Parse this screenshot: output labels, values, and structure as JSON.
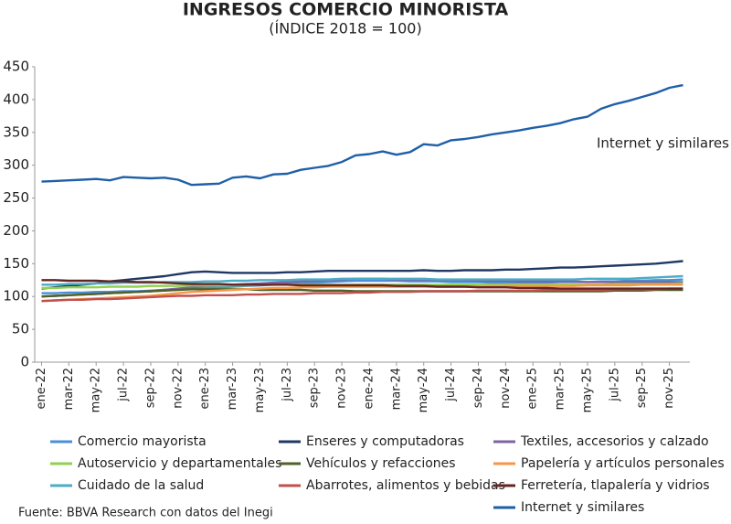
{
  "chart_data": {
    "type": "line",
    "title": "INGRESOS COMERCIO MINORISTA",
    "subtitle": "(ÍNDICE 2018 = 100)",
    "annotation": "Internet y similares",
    "source": "Fuente: BBVA Research con datos del Inegi",
    "categories": [
      "ene-22",
      null,
      "mar-22",
      null,
      "may-22",
      null,
      "jul-22",
      null,
      "sep-22",
      null,
      "nov-22",
      null,
      "ene-23",
      null,
      "mar-23",
      null,
      "may-23",
      null,
      "jul-23",
      null,
      "sep-23",
      null,
      "nov-23",
      null,
      "ene-24",
      null,
      "mar-24",
      null,
      "may-24",
      null,
      "jul-24",
      null,
      "sep-24",
      null,
      "nov-24",
      null,
      "ene-25",
      null,
      "mar-25",
      null,
      "may-25",
      null,
      "jul-25",
      null,
      "sep-25",
      null,
      "nov-25",
      null
    ],
    "ylim": [
      0,
      450
    ],
    "yticks": [
      0,
      50,
      100,
      150,
      200,
      250,
      300,
      350,
      400,
      450
    ],
    "grid": false,
    "series": [
      {
        "name": "Comercio mayorista",
        "color": "#4a90d9",
        "values": [
          105,
          105,
          106,
          106,
          107,
          107,
          108,
          108,
          109,
          110,
          111,
          112,
          113,
          114,
          115,
          116,
          117,
          118,
          119,
          120,
          121,
          122,
          123,
          124,
          124,
          124,
          124,
          123,
          123,
          123,
          122,
          122,
          122,
          121,
          121,
          121,
          121,
          121,
          122,
          122,
          122,
          123,
          123,
          124,
          124,
          125,
          125,
          126
        ]
      },
      {
        "name": "Enseres y computadoras",
        "color": "#1f3864",
        "values": [
          112,
          114,
          116,
          118,
          120,
          123,
          125,
          127,
          129,
          131,
          134,
          137,
          138,
          137,
          136,
          136,
          136,
          136,
          137,
          137,
          138,
          139,
          139,
          139,
          139,
          139,
          139,
          139,
          140,
          139,
          139,
          140,
          140,
          140,
          141,
          141,
          142,
          143,
          144,
          144,
          145,
          146,
          147,
          148,
          149,
          150,
          152,
          154
        ]
      },
      {
        "name": "Textiles, accesorios y calzado",
        "color": "#8064a2",
        "values": [
          100,
          101,
          102,
          103,
          104,
          105,
          106,
          107,
          108,
          110,
          112,
          114,
          116,
          117,
          118,
          119,
          120,
          121,
          122,
          123,
          124,
          125,
          126,
          127,
          127,
          127,
          126,
          126,
          126,
          125,
          125,
          125,
          124,
          124,
          124,
          123,
          123,
          123,
          123,
          123,
          122,
          122,
          122,
          122,
          122,
          122,
          122,
          122
        ]
      },
      {
        "name": "Autoservicio y departamentales",
        "color": "#92d050",
        "values": [
          113,
          113,
          114,
          114,
          114,
          115,
          115,
          115,
          116,
          116,
          116,
          117,
          117,
          117,
          117,
          117,
          118,
          118,
          118,
          118,
          118,
          118,
          118,
          118,
          118,
          118,
          118,
          118,
          118,
          118,
          118,
          118,
          118,
          118,
          118,
          118,
          118,
          118,
          118,
          118,
          118,
          118,
          119,
          119,
          119,
          119,
          119,
          120
        ]
      },
      {
        "name": "Vehículos y refacciones",
        "color": "#4f6228",
        "values": [
          100,
          101,
          102,
          103,
          104,
          105,
          106,
          107,
          108,
          109,
          110,
          111,
          111,
          111,
          111,
          111,
          110,
          110,
          110,
          110,
          109,
          109,
          109,
          108,
          108,
          108,
          108,
          108,
          108,
          108,
          108,
          108,
          108,
          108,
          108,
          108,
          108,
          108,
          108,
          108,
          108,
          108,
          109,
          109,
          109,
          110,
          110,
          110
        ]
      },
      {
        "name": "Papelería y artículos personales",
        "color": "#f79646",
        "values": [
          93,
          94,
          95,
          96,
          97,
          98,
          99,
          100,
          101,
          103,
          105,
          107,
          108,
          109,
          110,
          111,
          112,
          113,
          113,
          114,
          114,
          115,
          115,
          115,
          115,
          115,
          115,
          115,
          115,
          115,
          115,
          115,
          115,
          116,
          116,
          116,
          116,
          116,
          116,
          116,
          117,
          117,
          117,
          117,
          118,
          118,
          118,
          118
        ]
      },
      {
        "name": "Cuidado de la salud",
        "color": "#4bacc6",
        "values": [
          118,
          118,
          119,
          119,
          120,
          120,
          121,
          121,
          121,
          122,
          122,
          122,
          123,
          123,
          124,
          124,
          125,
          125,
          125,
          126,
          126,
          126,
          127,
          127,
          127,
          127,
          127,
          127,
          127,
          126,
          126,
          126,
          126,
          126,
          126,
          126,
          126,
          126,
          126,
          126,
          127,
          127,
          127,
          127,
          128,
          129,
          130,
          131
        ]
      },
      {
        "name": "Abarrotes, alimentos y bebidas",
        "color": "#c0504d",
        "values": [
          93,
          94,
          95,
          95,
          96,
          96,
          97,
          98,
          99,
          100,
          101,
          101,
          102,
          102,
          102,
          103,
          103,
          104,
          104,
          104,
          105,
          105,
          105,
          106,
          106,
          107,
          107,
          107,
          108,
          108,
          108,
          108,
          109,
          109,
          109,
          109,
          109,
          110,
          110,
          110,
          110,
          110,
          111,
          111,
          111,
          111,
          112,
          112
        ]
      },
      {
        "name": "Ferretería, tlapalería y vidrios",
        "color": "#632523",
        "values": [
          125,
          125,
          124,
          124,
          124,
          123,
          123,
          122,
          122,
          121,
          120,
          119,
          119,
          119,
          118,
          118,
          118,
          118,
          118,
          117,
          117,
          117,
          117,
          117,
          117,
          117,
          116,
          116,
          116,
          115,
          115,
          115,
          114,
          114,
          114,
          113,
          113,
          113,
          112,
          112,
          112,
          112,
          112,
          112,
          112,
          112,
          112,
          112
        ]
      },
      {
        "name": "Internet y similares",
        "color": "#1f5fa8",
        "values": [
          275,
          276,
          277,
          278,
          279,
          277,
          282,
          281,
          280,
          281,
          278,
          270,
          271,
          272,
          281,
          283,
          280,
          286,
          287,
          293,
          296,
          299,
          305,
          315,
          317,
          321,
          316,
          320,
          332,
          330,
          338,
          340,
          343,
          347,
          350,
          353,
          357,
          360,
          364,
          370,
          374,
          386,
          393,
          398,
          404,
          410,
          418,
          422
        ]
      }
    ]
  }
}
